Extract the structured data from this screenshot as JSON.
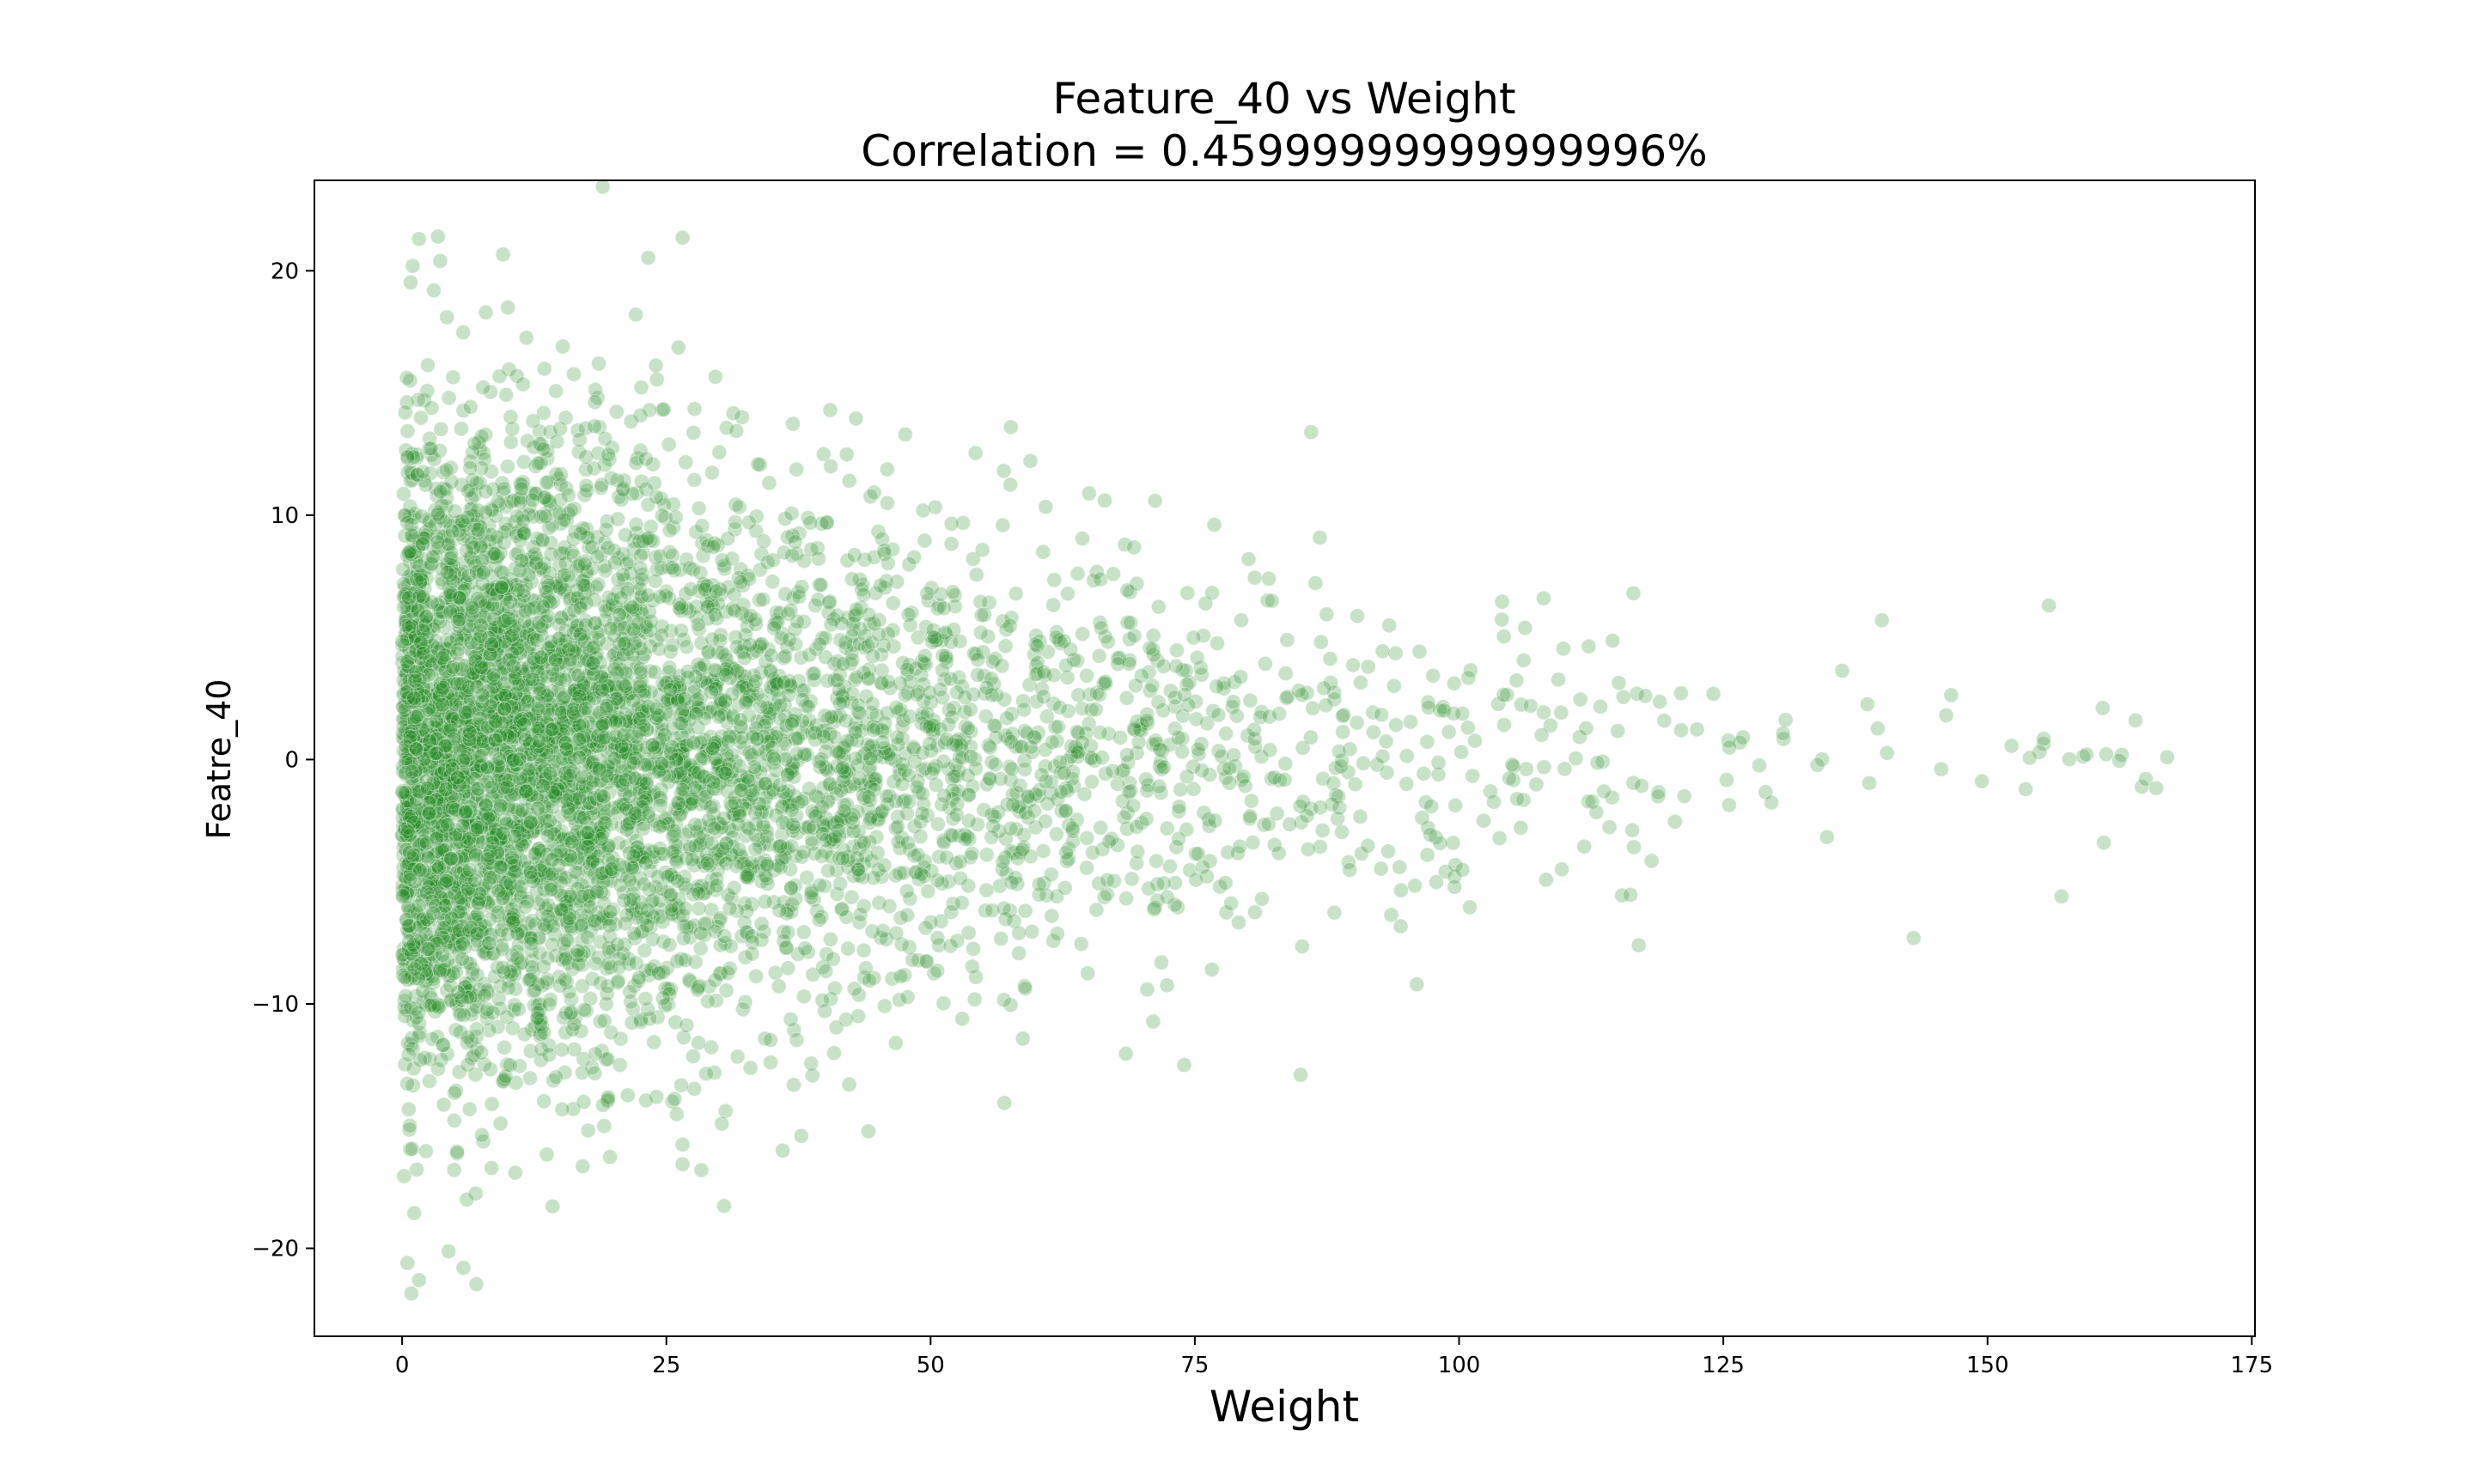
{
  "chart_data": {
    "type": "scatter",
    "title": "Feature_40 vs Weight",
    "subtitle": "Correlation = 0.45999999999999996%",
    "xlabel": "Weight",
    "ylabel": "Featre_40",
    "xlim": [
      -8.3,
      175.3
    ],
    "ylim": [
      -23.6,
      23.7
    ],
    "xticks": [
      0,
      25,
      50,
      75,
      100,
      125,
      150,
      175
    ],
    "yticks": [
      -20,
      -10,
      0,
      10,
      20
    ],
    "grid": false,
    "legend": "none",
    "marker_color": "#228b22",
    "marker_alpha": 0.25,
    "series": [
      {
        "points_sample": [
          [
            0.3,
            14.2
          ],
          [
            1.0,
            20.2
          ],
          [
            1.6,
            21.3
          ],
          [
            3.0,
            19.2
          ],
          [
            3.6,
            20.4
          ],
          [
            10.0,
            18.5
          ],
          [
            15.2,
            16.9
          ],
          [
            18.6,
            16.2
          ],
          [
            40.5,
            14.3
          ],
          [
            47.6,
            13.3
          ],
          [
            57.6,
            13.6
          ],
          [
            86.0,
            13.4
          ],
          [
            0.5,
            -20.6
          ],
          [
            1.6,
            -21.3
          ],
          [
            5.8,
            -20.8
          ],
          [
            36.0,
            -16.0
          ],
          [
            74.0,
            -12.5
          ],
          [
            85.0,
            -12.9
          ],
          [
            96.0,
            -9.2
          ],
          [
            117.0,
            -7.6
          ],
          [
            143.0,
            -7.3
          ],
          [
            157.0,
            -5.6
          ],
          [
            161.0,
            -3.4
          ],
          [
            167.0,
            0.1
          ],
          [
            164.0,
            1.6
          ],
          [
            155.8,
            6.3
          ],
          [
            140.0,
            5.7
          ],
          [
            116.5,
            6.8
          ],
          [
            108.0,
            6.6
          ],
          [
            82.0,
            7.4
          ]
        ]
      }
    ]
  }
}
